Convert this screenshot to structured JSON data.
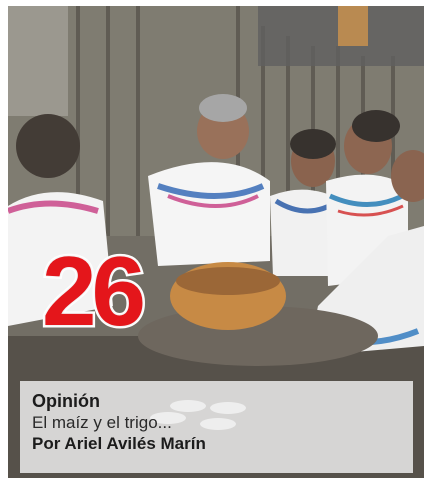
{
  "card": {
    "number": "26",
    "category": "Opinión",
    "headline": "El maíz y el trigo...",
    "author": "Por Ariel Avilés Marín"
  },
  "colors": {
    "number_fill": "#e4161b",
    "number_outline": "#ffffff",
    "caption_bg": "#ebebeb"
  },
  "image": {
    "subject": "women in white embroidered huipiles around a gourd bowl preparing maize dough"
  }
}
